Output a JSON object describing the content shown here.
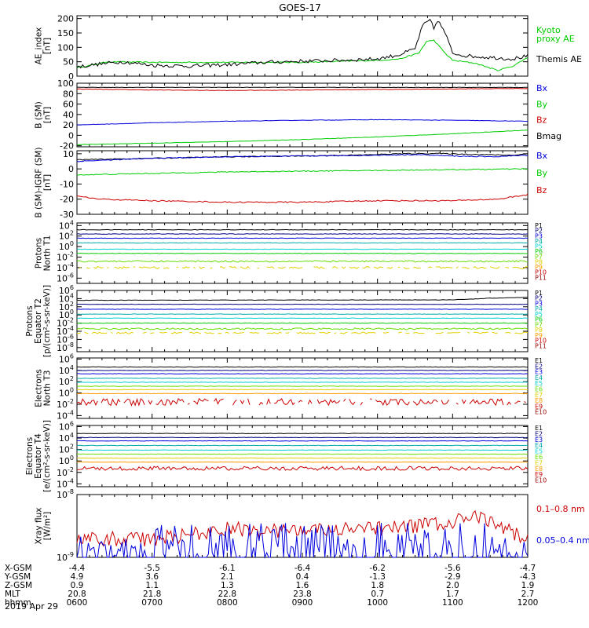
{
  "title": "GOES-17",
  "date": "2019 Apr 29",
  "colors": {
    "black": "#000000",
    "red": "#cc0000",
    "green": "#00cc00",
    "blue": "#0000dd",
    "navy": "#000080",
    "teal": "#00aaaa",
    "cyan": "#00d0d0",
    "lime": "#66dd00",
    "yellow": "#e0d000",
    "orange": "#ff9900",
    "darkred": "#990000"
  },
  "chart_data": [
    {
      "id": "ae",
      "type": "line",
      "ylabel": [
        "AE_index",
        "[nT]"
      ],
      "yticks": [
        0,
        50,
        100,
        150,
        200
      ],
      "ylim": [
        0,
        210
      ],
      "legend": [
        {
          "text": "Kyoto",
          "color": "green"
        },
        {
          "text": "proxy AE",
          "color": "green"
        },
        {
          "text": "Themis AE",
          "color": "black"
        }
      ],
      "series": [
        {
          "name": "Kyoto proxy AE",
          "color": "green",
          "noise": 1,
          "x": [
            6.0,
            6.2,
            6.4,
            7.0,
            9.0,
            10.0,
            10.3,
            10.55,
            10.65,
            10.75,
            10.9,
            11.0,
            11.3,
            11.6,
            11.8,
            12.0
          ],
          "y": [
            30,
            38,
            50,
            48,
            48,
            55,
            60,
            80,
            120,
            125,
            80,
            55,
            45,
            20,
            35,
            65
          ]
        },
        {
          "name": "Themis AE",
          "color": "black",
          "noise": 3,
          "x": [
            6.0,
            6.3,
            6.6,
            7.0,
            7.5,
            8.0,
            8.5,
            9.0,
            9.5,
            10.0,
            10.3,
            10.5,
            10.6,
            10.7,
            10.75,
            10.8,
            10.9,
            11.0,
            11.2,
            11.5,
            11.8,
            12.0
          ],
          "y": [
            32,
            42,
            50,
            38,
            35,
            40,
            48,
            52,
            55,
            60,
            75,
            95,
            175,
            195,
            165,
            195,
            150,
            80,
            70,
            65,
            60,
            70
          ]
        }
      ]
    },
    {
      "id": "bsm",
      "type": "line",
      "ylabel": [
        "B (SM)",
        "[nT]"
      ],
      "yticks": [
        -20,
        0,
        20,
        40,
        60,
        80,
        100
      ],
      "ylim": [
        -22,
        100
      ],
      "legend": [
        {
          "text": "Bx",
          "color": "blue"
        },
        {
          "text": "By",
          "color": "green"
        },
        {
          "text": "Bz",
          "color": "red"
        },
        {
          "text": "Bmag",
          "color": "black"
        }
      ],
      "series": [
        {
          "name": "Bmag",
          "color": "black",
          "noise": 0.3,
          "x": [
            6,
            12
          ],
          "y": [
            92,
            92
          ]
        },
        {
          "name": "Bz",
          "color": "red",
          "noise": 0.4,
          "x": [
            6,
            7,
            8,
            9,
            10,
            11,
            12
          ],
          "y": [
            89,
            87,
            86,
            87,
            88,
            89,
            90
          ]
        },
        {
          "name": "Bx",
          "color": "blue",
          "noise": 0.3,
          "x": [
            6,
            7,
            8,
            9,
            10,
            11,
            12
          ],
          "y": [
            20,
            24,
            27,
            29,
            30,
            29,
            27
          ]
        },
        {
          "name": "By",
          "color": "green",
          "noise": 0.3,
          "x": [
            6,
            7,
            8,
            9,
            10,
            11,
            12
          ],
          "y": [
            -18,
            -15,
            -12,
            -8,
            -3,
            3,
            10
          ]
        }
      ]
    },
    {
      "id": "bigrf",
      "type": "line",
      "ylabel": [
        "B (SM)-IGRF (SM)",
        "[nT]"
      ],
      "yticks": [
        -30,
        -20,
        -10,
        0,
        10
      ],
      "ylim": [
        -30,
        12
      ],
      "legend": [
        {
          "text": "Bx",
          "color": "blue"
        },
        {
          "text": "By",
          "color": "green"
        },
        {
          "text": "Bz",
          "color": "red"
        }
      ],
      "series": [
        {
          "name": "black",
          "color": "black",
          "noise": 0.3,
          "x": [
            6,
            7,
            8,
            9,
            9.8,
            10.3,
            10.8,
            11.3,
            11.8,
            12
          ],
          "y": [
            6,
            7,
            8,
            8.5,
            9.2,
            10,
            10.2,
            9.6,
            9.0,
            10
          ]
        },
        {
          "name": "Bx",
          "color": "blue",
          "noise": 0.3,
          "x": [
            6,
            6.5,
            7,
            8,
            9,
            10,
            10.5,
            11,
            11.5,
            12
          ],
          "y": [
            5,
            6,
            7,
            8,
            8.5,
            9,
            9.5,
            8.5,
            8,
            9
          ]
        },
        {
          "name": "By",
          "color": "green",
          "noise": 0.3,
          "x": [
            6,
            7,
            8,
            9,
            10,
            11,
            12
          ],
          "y": [
            -4,
            -3,
            -2,
            -1.5,
            -1,
            -0.5,
            0
          ]
        },
        {
          "name": "Bz",
          "color": "red",
          "noise": 0.4,
          "x": [
            6,
            6.3,
            7,
            8,
            9,
            10,
            10.6,
            11,
            11.6,
            12
          ],
          "y": [
            -18,
            -20,
            -21,
            -22,
            -22,
            -21,
            -21,
            -21,
            -20,
            -17
          ]
        }
      ]
    },
    {
      "id": "pnorth",
      "type": "line",
      "log": true,
      "ylabel": [
        "Protons",
        "North T1"
      ],
      "yticks": [
        -6,
        -4,
        -2,
        0,
        2,
        4
      ],
      "ylim": [
        -7,
        4.5
      ],
      "legend": [
        {
          "text": "P1",
          "color": "black"
        },
        {
          "text": "P2",
          "color": "navy"
        },
        {
          "text": "P3",
          "color": "blue"
        },
        {
          "text": "P4",
          "color": "teal"
        },
        {
          "text": "P5",
          "color": "cyan"
        },
        {
          "text": "P6",
          "color": "green"
        },
        {
          "text": "P7",
          "color": "lime"
        },
        {
          "text": "P8",
          "color": "yellow"
        },
        {
          "text": "P9",
          "color": "orange"
        },
        {
          "text": "P10",
          "color": "red"
        },
        {
          "text": "P11",
          "color": "darkred"
        }
      ],
      "series": [
        {
          "name": "P1",
          "color": "black",
          "level": 3.2,
          "noise": 0.05
        },
        {
          "name": "P2",
          "color": "navy",
          "level": 2.4,
          "noise": 0.05
        },
        {
          "name": "P3",
          "color": "blue",
          "level": 1.6,
          "noise": 0.05
        },
        {
          "name": "P4",
          "color": "teal",
          "level": 0.7,
          "noise": 0.05
        },
        {
          "name": "P5",
          "color": "cyan",
          "level": -0.5,
          "noise": 0.05
        },
        {
          "name": "P6",
          "color": "green",
          "level": -1.3,
          "noise": 0.05
        },
        {
          "name": "P7",
          "color": "lime",
          "level": -2.8,
          "noise": 0.15
        },
        {
          "name": "P8",
          "color": "yellow",
          "level": -4.0,
          "noise": 0.2,
          "gaps": true
        }
      ]
    },
    {
      "id": "peq",
      "type": "line",
      "log": true,
      "ylabel": [
        "Protons",
        "Equator T2",
        "[p/(cm²-s-sr-keV)]"
      ],
      "yticks": [
        -8,
        -6,
        -4,
        -2,
        0,
        2,
        4,
        6
      ],
      "ylim": [
        -9,
        6
      ],
      "legend": [
        {
          "text": "P1",
          "color": "black"
        },
        {
          "text": "P2",
          "color": "navy"
        },
        {
          "text": "P3",
          "color": "blue"
        },
        {
          "text": "P4",
          "color": "teal"
        },
        {
          "text": "P5",
          "color": "cyan"
        },
        {
          "text": "P6",
          "color": "green"
        },
        {
          "text": "P7",
          "color": "lime"
        },
        {
          "text": "P8",
          "color": "yellow"
        },
        {
          "text": "P9",
          "color": "orange"
        },
        {
          "text": "P10",
          "color": "red"
        },
        {
          "text": "P11",
          "color": "darkred"
        }
      ],
      "series": [
        {
          "name": "P1",
          "color": "black",
          "level": 3.8,
          "noise": 0.05,
          "x": [
            6,
            11,
            11.5,
            12
          ],
          "y": [
            3.6,
            3.7,
            4.1,
            4.3
          ]
        },
        {
          "name": "P2",
          "color": "navy",
          "level": 2.6,
          "noise": 0.05
        },
        {
          "name": "P3",
          "color": "blue",
          "level": 1.4,
          "noise": 0.05
        },
        {
          "name": "P4",
          "color": "teal",
          "level": 0.2,
          "noise": 0.05
        },
        {
          "name": "P5",
          "color": "cyan",
          "level": -0.8,
          "noise": 0.05
        },
        {
          "name": "P6",
          "color": "green",
          "level": -2.0,
          "noise": 0.08
        },
        {
          "name": "P7",
          "color": "lime",
          "level": -3.4,
          "noise": 0.2
        },
        {
          "name": "P8",
          "color": "yellow",
          "level": -4.4,
          "noise": 0.2,
          "gaps": true
        }
      ]
    },
    {
      "id": "enorth",
      "type": "line",
      "log": true,
      "ylabel": [
        "Electrons",
        "North T3"
      ],
      "yticks": [
        -4,
        -2,
        0,
        2,
        4,
        6
      ],
      "ylim": [
        -4.5,
        6.2
      ],
      "legend": [
        {
          "text": "E1",
          "color": "black"
        },
        {
          "text": "E2",
          "color": "navy"
        },
        {
          "text": "E3",
          "color": "blue"
        },
        {
          "text": "E4",
          "color": "teal"
        },
        {
          "text": "E5",
          "color": "cyan"
        },
        {
          "text": "E6",
          "color": "lime"
        },
        {
          "text": "E7",
          "color": "yellow"
        },
        {
          "text": "E8",
          "color": "orange"
        },
        {
          "text": "E9",
          "color": "red"
        },
        {
          "text": "E10",
          "color": "darkred"
        }
      ],
      "series": [
        {
          "name": "E1",
          "color": "black",
          "level": 4.6,
          "noise": 0.04
        },
        {
          "name": "E2",
          "color": "navy",
          "level": 4.0,
          "noise": 0.04
        },
        {
          "name": "E3",
          "color": "blue",
          "level": 3.4,
          "noise": 0.04
        },
        {
          "name": "E4",
          "color": "teal",
          "level": 2.6,
          "noise": 0.04
        },
        {
          "name": "E5",
          "color": "cyan",
          "level": 1.9,
          "noise": 0.04
        },
        {
          "name": "E6",
          "color": "lime",
          "level": 1.2,
          "noise": 0.04
        },
        {
          "name": "E7",
          "color": "yellow",
          "level": 0.6,
          "noise": 0.04
        },
        {
          "name": "E8",
          "color": "orange",
          "level": -0.1,
          "noise": 0.04
        },
        {
          "name": "E9",
          "color": "red",
          "level": -1.6,
          "noise": 0.6,
          "gaps": true
        }
      ]
    },
    {
      "id": "eeq",
      "type": "line",
      "log": true,
      "ylabel": [
        "Electrons",
        "Equator T4",
        "[e/(cm²-s-sr-keV)]"
      ],
      "yticks": [
        -4,
        -2,
        0,
        2,
        4,
        6
      ],
      "ylim": [
        -4.5,
        6.2
      ],
      "legend": [
        {
          "text": "E1",
          "color": "black"
        },
        {
          "text": "E2",
          "color": "navy"
        },
        {
          "text": "E3",
          "color": "blue"
        },
        {
          "text": "E4",
          "color": "teal"
        },
        {
          "text": "E5",
          "color": "cyan"
        },
        {
          "text": "E6",
          "color": "lime"
        },
        {
          "text": "E7",
          "color": "yellow"
        },
        {
          "text": "E8",
          "color": "orange"
        },
        {
          "text": "E9",
          "color": "red"
        },
        {
          "text": "E10",
          "color": "darkred"
        }
      ],
      "series": [
        {
          "name": "E1",
          "color": "black",
          "level": 4.8,
          "noise": 0.04
        },
        {
          "name": "E2",
          "color": "navy",
          "level": 4.1,
          "noise": 0.04
        },
        {
          "name": "E3",
          "color": "blue",
          "level": 3.5,
          "noise": 0.04
        },
        {
          "name": "E4",
          "color": "teal",
          "level": 2.7,
          "noise": 0.04
        },
        {
          "name": "E5",
          "color": "cyan",
          "level": 1.9,
          "noise": 0.04
        },
        {
          "name": "E6",
          "color": "lime",
          "level": 1.2,
          "noise": 0.04
        },
        {
          "name": "E7",
          "color": "yellow",
          "level": 0.5,
          "noise": 0.04
        },
        {
          "name": "E8",
          "color": "orange",
          "level": -0.2,
          "noise": 0.04
        },
        {
          "name": "E9",
          "color": "red",
          "level": -1.3,
          "noise": 0.35
        }
      ]
    },
    {
      "id": "xray",
      "type": "line",
      "log": true,
      "ylabel": [
        "Xray flux",
        "[W/m²]"
      ],
      "yticks": [
        -9,
        -8
      ],
      "ylim": [
        -9,
        -8
      ],
      "legend": [
        {
          "text": "0.1–0.8 nm",
          "color": "red"
        },
        {
          "text": "0.05–0.4 nm",
          "color": "blue"
        }
      ],
      "series": [
        {
          "name": "0.1–0.8 nm",
          "color": "red",
          "noise": 0.12,
          "x": [
            6,
            7,
            8,
            9,
            10,
            10.5,
            11,
            11.3,
            11.6,
            12
          ],
          "y": [
            -8.7,
            -8.72,
            -8.55,
            -8.58,
            -8.55,
            -8.5,
            -8.45,
            -8.35,
            -8.5,
            -8.7
          ]
        },
        {
          "name": "0.05–0.4 nm",
          "color": "blue",
          "noise": 0.35,
          "spiky": true,
          "x": [
            6,
            12
          ],
          "y": [
            -9.0,
            -9.0
          ]
        }
      ]
    }
  ],
  "xaxis": {
    "rows": [
      {
        "label": "X-GSM",
        "values": [
          "-4.4",
          "-5.5",
          "-6.1",
          "-6.4",
          "-6.2",
          "-5.6",
          "-4.7"
        ]
      },
      {
        "label": "Y-GSM",
        "values": [
          "4.9",
          "3.6",
          "2.1",
          "0.4",
          "-1.3",
          "-2.9",
          "-4.3"
        ]
      },
      {
        "label": "Z-GSM",
        "values": [
          "0.9",
          "1.1",
          "1.3",
          "1.6",
          "1.8",
          "2.0",
          "1.9"
        ]
      },
      {
        "label": "MLT",
        "values": [
          "20.8",
          "21.8",
          "22.8",
          "23.8",
          "0.7",
          "1.7",
          "2.7"
        ]
      },
      {
        "label": "hhmm",
        "values": [
          "0600",
          "0700",
          "0800",
          "0900",
          "1000",
          "1100",
          "1200"
        ]
      }
    ]
  }
}
